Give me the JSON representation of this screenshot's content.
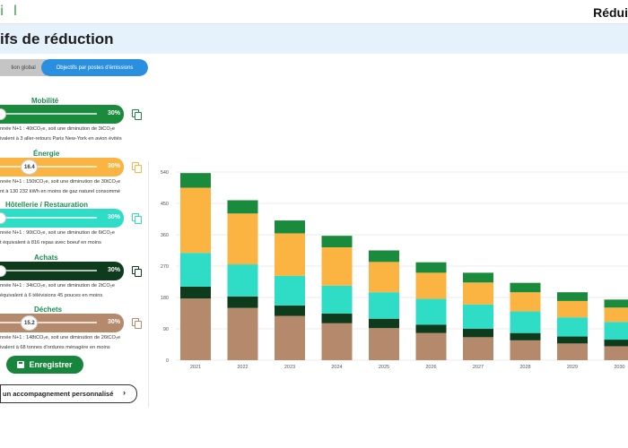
{
  "header": {
    "logo_text": "i l",
    "right_title": "Rédui"
  },
  "page": {
    "title": "ifs de réduction"
  },
  "tabs": [
    {
      "label": "tion global",
      "active": false
    },
    {
      "label": "Objectifs par postes d'émissions",
      "active": true
    }
  ],
  "categories": [
    {
      "name": "Mobilité",
      "color": "#1a8a3c",
      "percent_label": "30%",
      "knob_value": "",
      "desc1": "nnée N+1 : 40tCO₂e, soit une diminution de  3tCO₂e",
      "desc2": "ivalent à 3 aller-retours Paris New-York en avion évités",
      "level": 0
    },
    {
      "name": "Énergie",
      "color": "#fbb441",
      "percent_label": "30%",
      "knob_value": "16.4",
      "desc1": "nnée N+1 : 150tCO₂e, soit une diminution de  30tCO₂e",
      "desc2": "nt à 130 232 kWh en moins de gaz naturel consommé",
      "level": 0.3
    },
    {
      "name": "Hôtellerie / Restauration",
      "color": "#2fdcc6",
      "percent_label": "30%",
      "knob_value": "",
      "desc1": "nnée N+1 : 90tCO₂e, soit une diminution de  6tCO₂e",
      "desc2": "t équivalent à 816 repas avec boeuf en moins",
      "level": 0
    },
    {
      "name": "Achats",
      "color": "#0d3b1c",
      "percent_label": "30%",
      "knob_value": "",
      "desc1": "nnée N+1 : 34tCO₂e, soit une diminution de  2tCO₂e",
      "desc2": "équivalent à 6 télévisions 45 pouces en moins",
      "level": 0
    },
    {
      "name": "Déchets",
      "color": "#b5896b",
      "percent_label": "30%",
      "knob_value": "15.2",
      "desc1": "nnée N+1 : 148tCO₂e, soit une diminution de  26tCO₂e",
      "desc2": "ivalent à 68 tonnes d'ordures ménagère en moins",
      "level": 0.3
    }
  ],
  "actions": {
    "save_label": "Enregistrer",
    "accompagnement_label": " un accompagnement personnalisé"
  },
  "chart_data": {
    "type": "bar",
    "stacked": true,
    "categories": [
      "2021",
      "2022",
      "2023",
      "2024",
      "2025",
      "2026",
      "2027",
      "2028",
      "2029",
      "2030"
    ],
    "y_ticks": [
      0,
      90,
      180,
      270,
      360,
      450,
      540
    ],
    "ylim": [
      0,
      540
    ],
    "series": [
      {
        "name": "Déchets",
        "color": "#b5896b",
        "values": [
          177,
          150,
          127,
          106,
          92,
          78,
          66,
          57,
          48,
          40
        ]
      },
      {
        "name": "Achats",
        "color": "#0d3b1c",
        "values": [
          34,
          33,
          30,
          28,
          27,
          24,
          24,
          21,
          20,
          19
        ]
      },
      {
        "name": "Hôtellerie / Restauration",
        "color": "#2fdcc6",
        "values": [
          97,
          92,
          85,
          80,
          76,
          74,
          70,
          62,
          55,
          51
        ]
      },
      {
        "name": "Énergie",
        "color": "#fbb441",
        "values": [
          187,
          146,
          122,
          110,
          87,
          75,
          63,
          55,
          47,
          41
        ]
      },
      {
        "name": "Mobilité",
        "color": "#1a8a3c",
        "values": [
          42,
          38,
          37,
          33,
          33,
          30,
          28,
          27,
          25,
          23
        ]
      }
    ]
  }
}
